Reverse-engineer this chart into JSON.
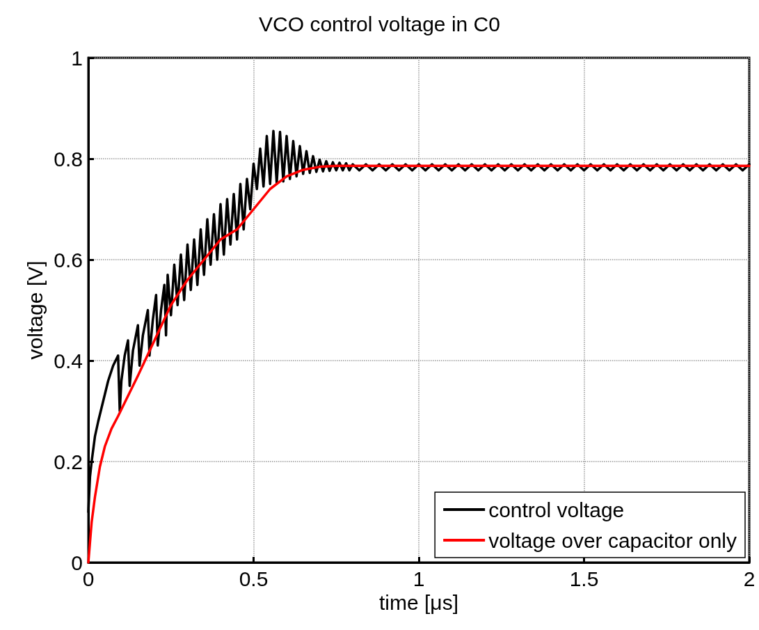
{
  "chart_data": {
    "type": "line",
    "title": "VCO control voltage in C0",
    "xlabel": "time [μs]",
    "ylabel": "voltage [V]",
    "xlim": [
      0,
      2
    ],
    "xticks": [
      0,
      0.5,
      1,
      1.5,
      2
    ],
    "ylim": [
      0,
      1
    ],
    "yticks": [
      0,
      0.2,
      0.4,
      0.6,
      0.8,
      1
    ],
    "grid": true,
    "legend": "bottom right",
    "line_style": "solid",
    "marker": "none",
    "series": [
      {
        "name": "control voltage",
        "color": "#000000",
        "x": [
          0,
          0.005,
          0.01,
          0.02,
          0.03,
          0.045,
          0.06,
          0.075,
          0.09,
          0.095,
          0.1,
          0.11,
          0.12,
          0.125,
          0.135,
          0.15,
          0.155,
          0.165,
          0.18,
          0.185,
          0.195,
          0.205,
          0.21,
          0.22,
          0.23,
          0.235,
          0.24,
          0.25,
          0.26,
          0.27,
          0.28,
          0.29,
          0.3,
          0.31,
          0.32,
          0.33,
          0.34,
          0.35,
          0.36,
          0.37,
          0.38,
          0.39,
          0.4,
          0.41,
          0.42,
          0.43,
          0.44,
          0.45,
          0.46,
          0.47,
          0.48,
          0.49,
          0.5,
          0.51,
          0.52,
          0.53,
          0.54,
          0.55,
          0.56,
          0.57,
          0.58,
          0.59,
          0.6,
          0.61,
          0.62,
          0.63,
          0.64,
          0.65,
          0.66,
          0.67,
          0.68,
          0.69,
          0.7,
          0.71,
          0.72,
          0.73,
          0.74,
          0.75,
          0.76,
          0.77,
          0.78,
          0.79,
          0.8,
          0.82,
          0.84,
          0.86,
          0.88,
          0.9,
          0.92,
          0.94,
          0.96,
          0.98,
          1,
          1.02,
          1.04,
          1.06,
          1.08,
          1.1,
          1.12,
          1.14,
          1.16,
          1.18,
          1.2,
          1.22,
          1.24,
          1.26,
          1.28,
          1.3,
          1.32,
          1.34,
          1.36,
          1.38,
          1.4,
          1.42,
          1.44,
          1.46,
          1.48,
          1.5,
          1.52,
          1.54,
          1.56,
          1.58,
          1.6,
          1.62,
          1.64,
          1.66,
          1.68,
          1.7,
          1.72,
          1.74,
          1.76,
          1.78,
          1.8,
          1.82,
          1.84,
          1.86,
          1.88,
          1.9,
          1.92,
          1.94,
          1.96,
          1.98,
          2
        ],
        "values": [
          0.1,
          0.17,
          0.2,
          0.25,
          0.28,
          0.32,
          0.36,
          0.39,
          0.41,
          0.3,
          0.36,
          0.41,
          0.44,
          0.35,
          0.42,
          0.47,
          0.39,
          0.45,
          0.5,
          0.41,
          0.48,
          0.53,
          0.43,
          0.5,
          0.55,
          0.45,
          0.57,
          0.49,
          0.59,
          0.51,
          0.61,
          0.52,
          0.63,
          0.54,
          0.64,
          0.55,
          0.66,
          0.57,
          0.68,
          0.59,
          0.69,
          0.6,
          0.71,
          0.61,
          0.72,
          0.63,
          0.73,
          0.64,
          0.75,
          0.66,
          0.76,
          0.7,
          0.79,
          0.74,
          0.82,
          0.745,
          0.845,
          0.75,
          0.855,
          0.752,
          0.853,
          0.755,
          0.845,
          0.76,
          0.835,
          0.765,
          0.825,
          0.77,
          0.815,
          0.772,
          0.805,
          0.774,
          0.798,
          0.775,
          0.795,
          0.776,
          0.793,
          0.777,
          0.792,
          0.777,
          0.791,
          0.777,
          0.789,
          0.777,
          0.789,
          0.777,
          0.789,
          0.777,
          0.789,
          0.777,
          0.789,
          0.777,
          0.789,
          0.777,
          0.789,
          0.777,
          0.789,
          0.777,
          0.789,
          0.777,
          0.789,
          0.777,
          0.789,
          0.777,
          0.789,
          0.777,
          0.789,
          0.777,
          0.789,
          0.777,
          0.789,
          0.777,
          0.789,
          0.777,
          0.789,
          0.777,
          0.789,
          0.777,
          0.789,
          0.777,
          0.789,
          0.777,
          0.789,
          0.777,
          0.789,
          0.777,
          0.789,
          0.777,
          0.789,
          0.777,
          0.789,
          0.777,
          0.789,
          0.777,
          0.789,
          0.777,
          0.789,
          0.777,
          0.789,
          0.777,
          0.789,
          0.777,
          0.789
        ]
      },
      {
        "name": "voltage over capacitor only",
        "color": "#ff0000",
        "x": [
          0,
          0.01,
          0.02,
          0.035,
          0.05,
          0.07,
          0.09,
          0.12,
          0.15,
          0.2,
          0.25,
          0.3,
          0.35,
          0.4,
          0.45,
          0.5,
          0.55,
          0.6,
          0.65,
          0.7,
          0.75,
          1,
          1.5,
          2
        ],
        "values": [
          0,
          0.08,
          0.13,
          0.19,
          0.23,
          0.265,
          0.29,
          0.33,
          0.37,
          0.44,
          0.51,
          0.56,
          0.6,
          0.64,
          0.66,
          0.7,
          0.74,
          0.765,
          0.778,
          0.784,
          0.786,
          0.786,
          0.786,
          0.786
        ]
      }
    ]
  }
}
